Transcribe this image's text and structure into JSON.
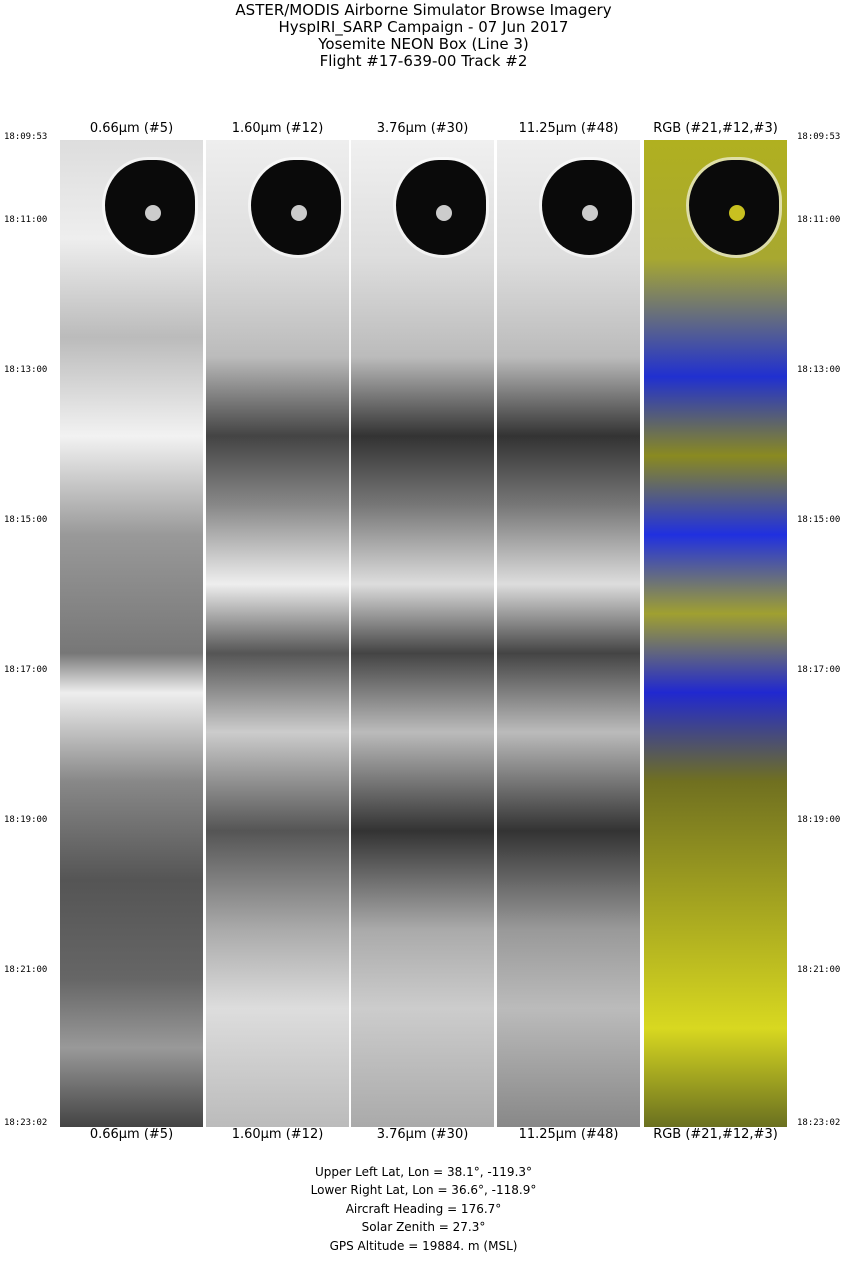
{
  "title_lines": [
    "ASTER/MODIS Airborne Simulator Browse Imagery",
    "HyspIRI_SARP Campaign - 07 Jun 2017",
    "Yosemite NEON Box (Line 3)",
    "Flight #17-639-00 Track #2"
  ],
  "time_labels": [
    "18:09:53",
    "18:11:00",
    "18:13:00",
    "18:15:00",
    "18:17:00",
    "18:19:00",
    "18:21:00",
    "18:23:02"
  ],
  "panels": [
    {
      "label": "0.66μm (#5)",
      "kind": "visible"
    },
    {
      "label": "1.60μm (#12)",
      "kind": "swir"
    },
    {
      "label": "3.76μm (#30)",
      "kind": "mwir"
    },
    {
      "label": "11.25μm (#48)",
      "kind": "tir"
    },
    {
      "label": "RGB (#21,#12,#3)",
      "kind": "rgb"
    }
  ],
  "colors": {
    "rgb_vegetation": "#c8c020",
    "rgb_snow": "#1a22e0",
    "water": "#0a0a0a"
  },
  "info": {
    "upper_left": "Upper Left Lat, Lon =   38.1°, -119.3°",
    "lower_right": "Lower Right Lat, Lon =   36.6°, -118.9°",
    "heading": "Aircraft Heading =  176.7°",
    "solar_zenith": "Solar Zenith =   27.3°",
    "gps_altitude": "GPS Altitude =  19884. m (MSL)"
  }
}
